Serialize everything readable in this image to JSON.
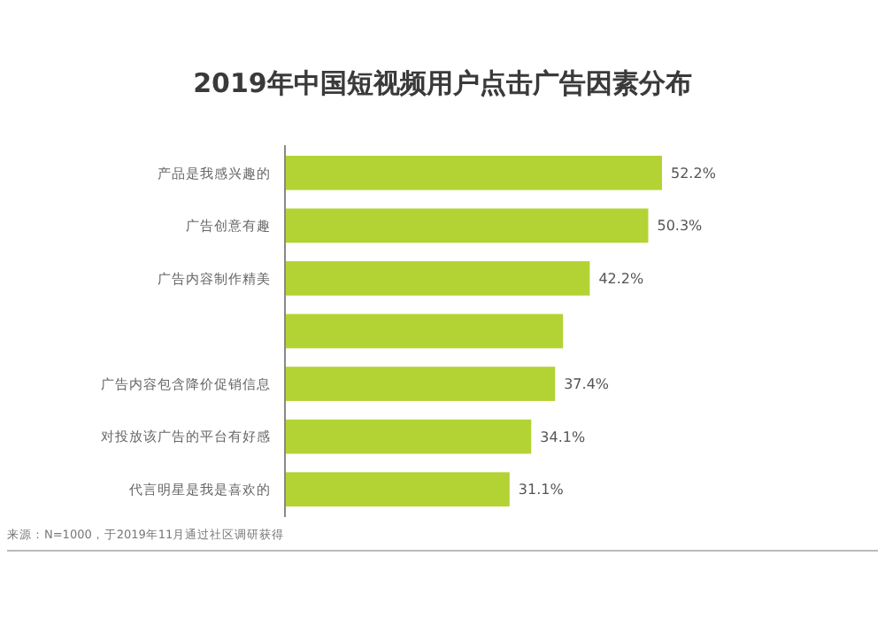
{
  "chart_data": {
    "type": "bar",
    "orientation": "horizontal",
    "title": "2019年中国短视频用户点击广告因素分布",
    "categories": [
      "产品是我感兴趣的",
      "广告创意有趣",
      "广告内容制作精美",
      null,
      "广告内容包含降价促销信息",
      "对投放该广告的平台有好感",
      "代言明星是我是喜欢的"
    ],
    "values": [
      52.2,
      50.3,
      42.2,
      38.5,
      37.4,
      34.1,
      31.1
    ],
    "value_labels": [
      "52.2%",
      "50.3%",
      "42.2%",
      null,
      "37.4%",
      "34.1%",
      "31.1%"
    ],
    "color": "#b3d334",
    "tick_labels": "y",
    "grid": false,
    "annotations": [
      "来源：N=1000，于2019年11月通过社区调研获得"
    ]
  }
}
